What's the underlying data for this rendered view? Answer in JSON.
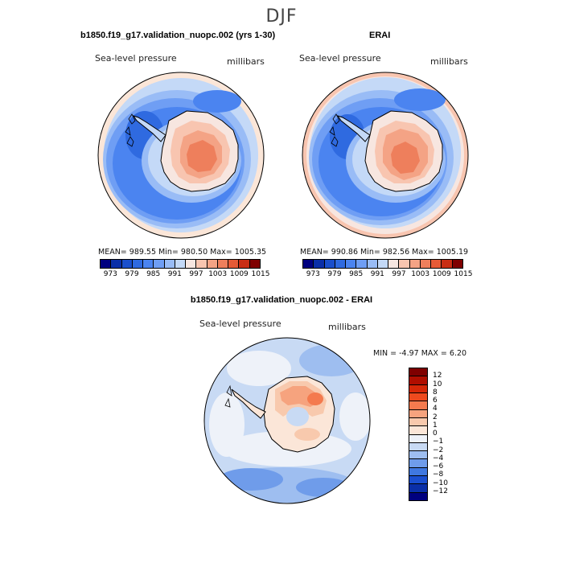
{
  "season": "DJF",
  "model_panel": {
    "title": "b1850.f19_g17.validation_nuopc.002 (yrs 1-30)",
    "variable": "Sea-level pressure",
    "units": "millibars",
    "stats": "MEAN= 989.55   Min= 980.50   Max= 1005.35"
  },
  "obs_panel": {
    "title": "ERAI",
    "variable": "Sea-level pressure",
    "units": "millibars",
    "stats": "MEAN= 990.86   Min= 982.56   Max= 1005.19"
  },
  "diff_panel": {
    "title": "b1850.f19_g17.validation_nuopc.002 - ERAI",
    "variable": "Sea-level pressure",
    "units": "millibars",
    "stats": "MIN =   -4.97 MAX =    6.20"
  },
  "colorbar_abs": {
    "colors": [
      "#00007f",
      "#0a2fa8",
      "#1a4fcc",
      "#2f6ae0",
      "#4b84f0",
      "#6f9ef4",
      "#99bcf6",
      "#c4d9f7",
      "#f7e6e0",
      "#f8c5b0",
      "#f4a385",
      "#ee7f5c",
      "#e55a36",
      "#c92e14",
      "#7f0000"
    ],
    "labels": [
      "973",
      "979",
      "985",
      "991",
      "997",
      "1003",
      "1009",
      "1015"
    ]
  },
  "colorbar_diff": {
    "colors": [
      "#7f0000",
      "#b00e00",
      "#d62808",
      "#ee4a1e",
      "#f47a4e",
      "#f6a37e",
      "#f8c9ad",
      "#fbe6d8",
      "#eef2f9",
      "#c8daf4",
      "#9ebef0",
      "#6f9cea",
      "#3f78e0",
      "#1a4fd0",
      "#0a2fa8",
      "#00007f"
    ],
    "labels": [
      "12",
      "10",
      "8",
      "6",
      "4",
      "2",
      "1",
      "0",
      "−1",
      "−2",
      "−4",
      "−6",
      "−8",
      "−10",
      "−12"
    ]
  },
  "chart_data": [
    {
      "type": "heatmap",
      "title": "b1850.f19_g17.validation_nuopc.002 (yrs 1-30)",
      "variable": "Sea-level pressure",
      "units": "millibars",
      "projection": "south polar stereographic",
      "mean": 989.55,
      "min": 980.5,
      "max": 1005.35,
      "levels": [
        973,
        976,
        979,
        982,
        985,
        988,
        991,
        994,
        997,
        1000,
        1003,
        1006,
        1009,
        1012,
        1015
      ]
    },
    {
      "type": "heatmap",
      "title": "ERAI",
      "variable": "Sea-level pressure",
      "units": "millibars",
      "projection": "south polar stereographic",
      "mean": 990.86,
      "min": 982.56,
      "max": 1005.19,
      "levels": [
        973,
        976,
        979,
        982,
        985,
        988,
        991,
        994,
        997,
        1000,
        1003,
        1006,
        1009,
        1012,
        1015
      ]
    },
    {
      "type": "heatmap",
      "title": "b1850.f19_g17.validation_nuopc.002 - ERAI",
      "variable": "Sea-level pressure",
      "units": "millibars",
      "projection": "south polar stereographic",
      "min": -4.97,
      "max": 6.2,
      "levels": [
        -12,
        -10,
        -8,
        -6,
        -4,
        -2,
        -1,
        0,
        1,
        2,
        4,
        6,
        8,
        10,
        12
      ]
    }
  ]
}
